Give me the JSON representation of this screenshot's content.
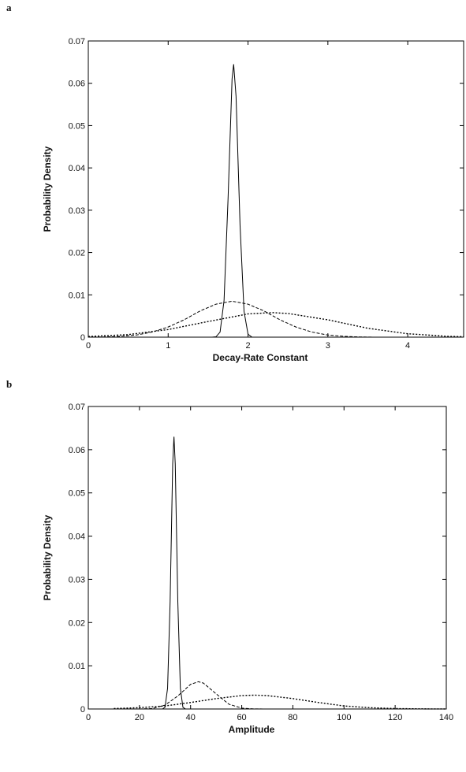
{
  "chart_data": [
    {
      "type": "line",
      "panel": "a",
      "xlabel": "Decay-Rate Constant",
      "ylabel": "Probability Density",
      "xlim": [
        0,
        4.7
      ],
      "xticks": [
        0,
        1,
        2,
        3,
        4
      ],
      "ylim": [
        0,
        0.07
      ],
      "yticks": [
        0,
        0.01,
        0.02,
        0.03,
        0.04,
        0.05,
        0.06,
        0.07
      ],
      "series": [
        {
          "color": "#000000",
          "dash": "solid",
          "x": [
            1.5,
            1.55,
            1.6,
            1.65,
            1.7,
            1.75,
            1.8,
            1.82,
            1.85,
            1.9,
            1.95,
            2.0,
            2.05,
            2.1,
            2.15
          ],
          "values": [
            0,
            0,
            0.0001,
            0.0012,
            0.0087,
            0.0327,
            0.061,
            0.0645,
            0.0569,
            0.0265,
            0.0061,
            0.0007,
            0,
            0,
            0
          ]
        },
        {
          "color": "#000000",
          "dash": "dashed",
          "x": [
            0,
            0.2,
            0.4,
            0.6,
            0.8,
            1.0,
            1.2,
            1.4,
            1.6,
            1.8,
            2.0,
            2.2,
            2.4,
            2.6,
            2.8,
            3.0,
            3.2,
            3.4,
            3.6
          ],
          "values": [
            1e-05,
            5e-05,
            0.0002,
            0.0005,
            0.0012,
            0.0024,
            0.0041,
            0.0062,
            0.0078,
            0.0085,
            0.0078,
            0.0062,
            0.0041,
            0.0024,
            0.0012,
            0.0005,
            0.0002,
            5e-05,
            0
          ]
        },
        {
          "color": "#000000",
          "dash": "dotted",
          "x": [
            0,
            0.5,
            1.0,
            1.5,
            2.0,
            2.3,
            2.5,
            3.0,
            3.5,
            4.0,
            4.5,
            4.7
          ],
          "values": [
            0.00015,
            0.0006,
            0.0018,
            0.0037,
            0.0055,
            0.0058,
            0.0056,
            0.0041,
            0.0021,
            0.0008,
            0.0002,
            0.0001
          ]
        }
      ]
    },
    {
      "type": "line",
      "panel": "b",
      "xlabel": "Amplitude",
      "ylabel": "Probability Density",
      "xlim": [
        0,
        140
      ],
      "xticks": [
        0,
        20,
        40,
        60,
        80,
        100,
        120,
        140
      ],
      "ylim": [
        0,
        0.07
      ],
      "yticks": [
        0,
        0.01,
        0.02,
        0.03,
        0.04,
        0.05,
        0.06,
        0.07
      ],
      "series": [
        {
          "color": "#000000",
          "dash": "solid",
          "x": [
            29,
            30,
            31,
            32,
            33,
            33.5,
            34,
            35,
            36,
            37,
            38
          ],
          "values": [
            0,
            0.0004,
            0.0048,
            0.0249,
            0.0567,
            0.063,
            0.0567,
            0.0249,
            0.0048,
            0.0004,
            0
          ]
        },
        {
          "color": "#000000",
          "dash": "dashed",
          "x": [
            20,
            25,
            30,
            35,
            40,
            43,
            45,
            50,
            55,
            60,
            65,
            70
          ],
          "values": [
            1e-05,
            0.0001,
            0.0009,
            0.003,
            0.0057,
            0.0063,
            0.006,
            0.0035,
            0.0011,
            0.0002,
            2e-05,
            0
          ]
        },
        {
          "color": "#000000",
          "dash": "dotted",
          "x": [
            10,
            20,
            30,
            40,
            50,
            60,
            65,
            70,
            80,
            90,
            100,
            110,
            120,
            130,
            140
          ],
          "values": [
            0.0001,
            0.0003,
            0.0007,
            0.0015,
            0.0024,
            0.0031,
            0.0032,
            0.0031,
            0.0024,
            0.0015,
            0.0007,
            0.0003,
            0.0001,
            3e-05,
            0
          ]
        }
      ]
    }
  ]
}
